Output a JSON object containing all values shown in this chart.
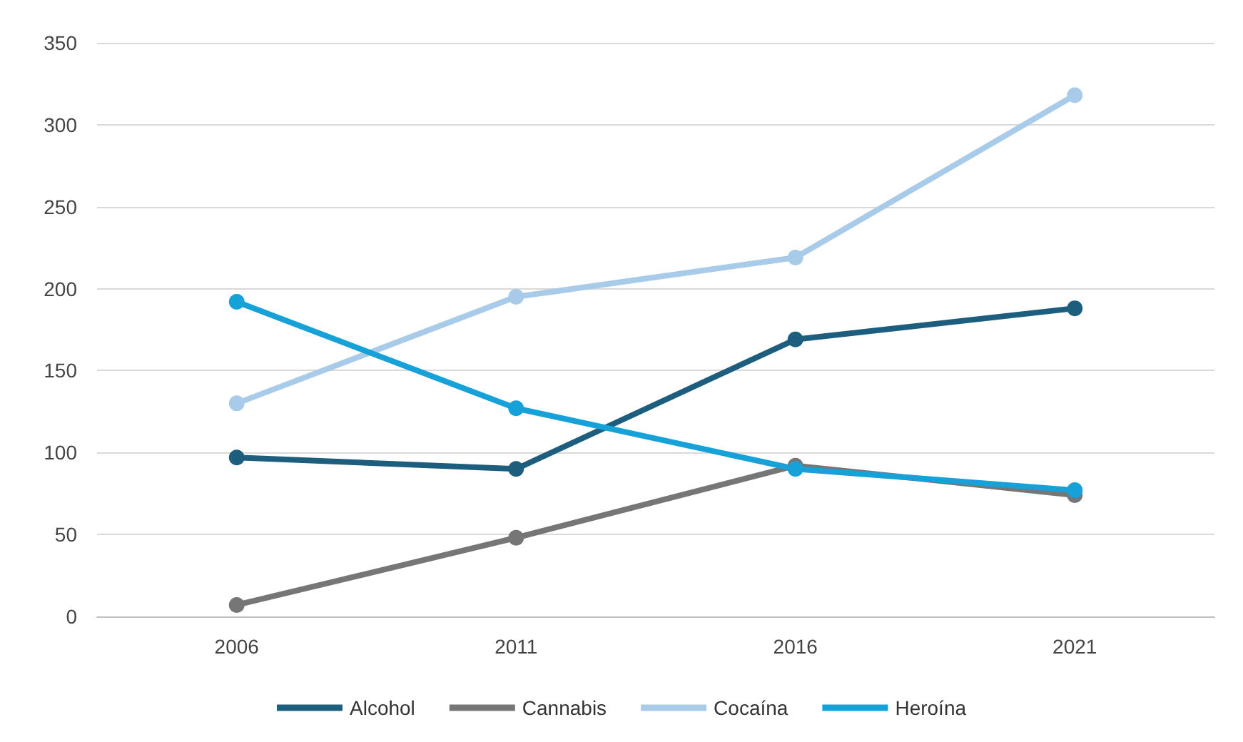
{
  "chart_data": {
    "type": "line",
    "categories": [
      "2006",
      "2011",
      "2016",
      "2021"
    ],
    "series": [
      {
        "name": "Alcohol",
        "color": "#1d5e7e",
        "values": [
          97,
          90,
          169,
          188
        ]
      },
      {
        "name": "Cannabis",
        "color": "#767676",
        "values": [
          7,
          48,
          92,
          74
        ]
      },
      {
        "name": "Cocaína",
        "color": "#a9cbea",
        "values": [
          130,
          195,
          219,
          318
        ]
      },
      {
        "name": "Heroína",
        "color": "#16a1d9",
        "values": [
          192,
          127,
          90,
          77
        ]
      }
    ],
    "ylim": [
      0,
      350
    ],
    "yticks": [
      0,
      50,
      100,
      150,
      200,
      250,
      300,
      350
    ],
    "grid": "y",
    "legend": "bottom",
    "marker": "circle",
    "line_style": "solid"
  }
}
